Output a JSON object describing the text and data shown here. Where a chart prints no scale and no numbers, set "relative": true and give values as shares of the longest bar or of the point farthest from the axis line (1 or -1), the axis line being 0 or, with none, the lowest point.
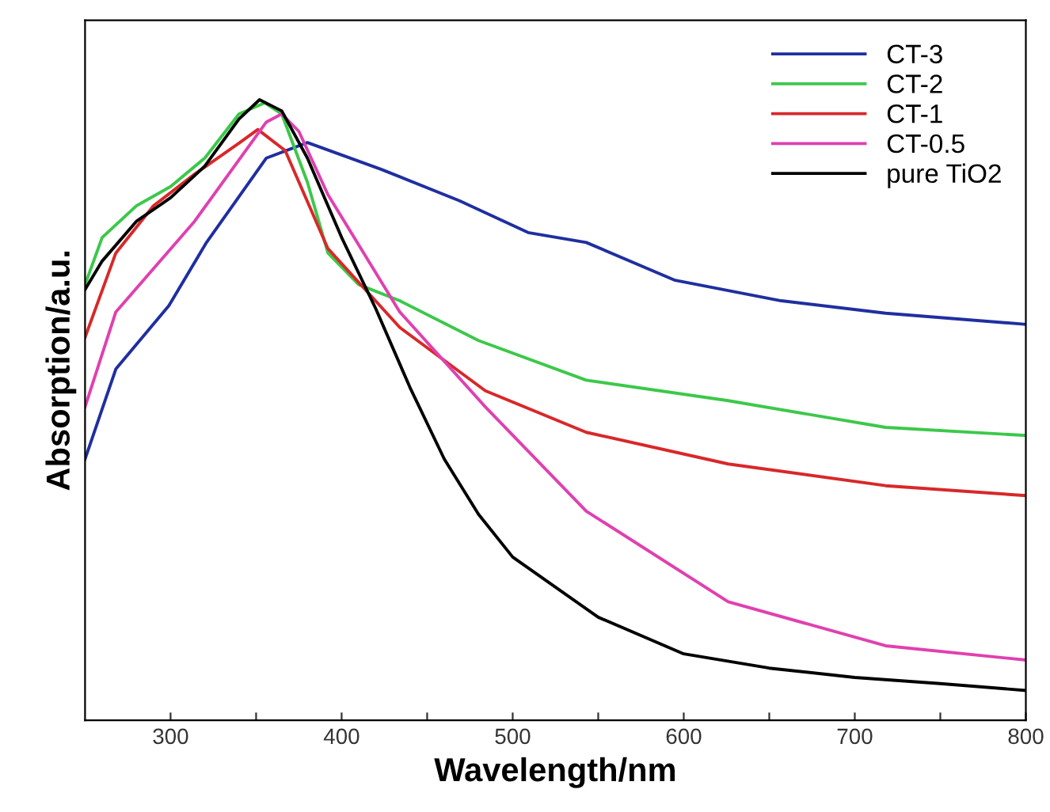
{
  "chart_data": {
    "type": "line",
    "relative": true,
    "xlabel": "Wavelength/nm",
    "ylabel": "Absorption/a.u.",
    "xlim": [
      250,
      800
    ],
    "xticks": [
      300,
      {
        "value": 350,
        "label": null
      },
      400,
      {
        "value": 450,
        "label": null
      },
      500,
      {
        "value": 550,
        "label": null
      },
      600,
      {
        "value": 650,
        "label": null
      },
      700,
      {
        "value": 750,
        "label": null
      },
      800
    ],
    "legend": "top right",
    "grid": false,
    "line_style": "solid",
    "marker": "none",
    "series": [
      {
        "name": "CT-3",
        "color": "#1f2fa0",
        "x": [
          250,
          268,
          299,
          321,
          356,
          380,
          423,
          469,
          509,
          543,
          595,
          657,
          718,
          800
        ],
        "values": [
          0.421,
          0.566,
          0.668,
          0.77,
          0.906,
          0.931,
          0.888,
          0.837,
          0.786,
          0.77,
          0.709,
          0.676,
          0.656,
          0.638
        ]
      },
      {
        "name": "CT-2",
        "color": "#3cc84a",
        "x": [
          250,
          260,
          280,
          300,
          320,
          340,
          355,
          365,
          380,
          392,
          410,
          434,
          480,
          543,
          626,
          718,
          800
        ],
        "values": [
          0.702,
          0.778,
          0.829,
          0.86,
          0.906,
          0.977,
          0.995,
          0.977,
          0.867,
          0.753,
          0.702,
          0.676,
          0.612,
          0.548,
          0.515,
          0.472,
          0.459
        ]
      },
      {
        "name": "CT-1",
        "color": "#d8282a",
        "x": [
          250,
          268,
          290,
          314,
          340,
          351,
          367,
          392,
          434,
          484,
          543,
          626,
          718,
          800
        ],
        "values": [
          0.617,
          0.753,
          0.829,
          0.88,
          0.93,
          0.952,
          0.918,
          0.76,
          0.633,
          0.531,
          0.464,
          0.413,
          0.378,
          0.362
        ]
      },
      {
        "name": "CT-0.5",
        "color": "#e040b0",
        "x": [
          250,
          268,
          314,
          356,
          365,
          375,
          392,
          434,
          484,
          543,
          626,
          718,
          800
        ],
        "values": [
          0.505,
          0.658,
          0.804,
          0.964,
          0.977,
          0.949,
          0.847,
          0.658,
          0.505,
          0.337,
          0.191,
          0.12,
          0.097
        ]
      },
      {
        "name": "pure TiO2",
        "color": "#000000",
        "x": [
          250,
          260,
          280,
          300,
          320,
          340,
          352,
          365,
          380,
          400,
          420,
          440,
          460,
          480,
          500,
          550,
          600,
          650,
          700,
          750,
          800
        ],
        "values": [
          0.694,
          0.74,
          0.804,
          0.842,
          0.893,
          0.969,
          1.0,
          0.982,
          0.906,
          0.778,
          0.663,
          0.536,
          0.421,
          0.332,
          0.263,
          0.166,
          0.107,
          0.084,
          0.069,
          0.059,
          0.048
        ]
      }
    ]
  }
}
